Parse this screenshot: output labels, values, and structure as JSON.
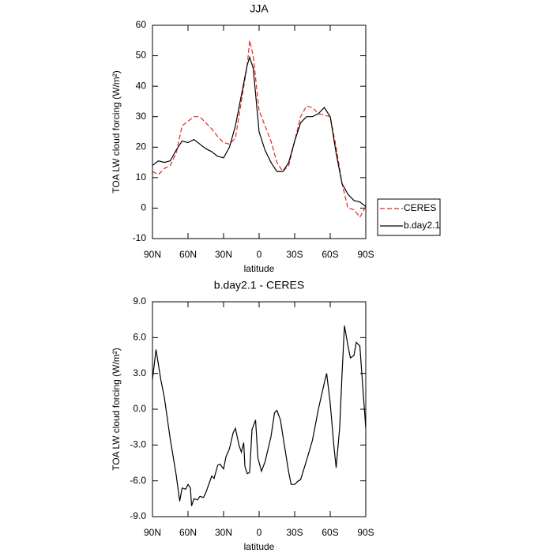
{
  "chart_data": [
    {
      "type": "line",
      "title": "JJA",
      "xlabel": "latitude",
      "ylabel": "TOA LW cloud forcing (W/m²)",
      "x": [
        90,
        85,
        80,
        75,
        70,
        65,
        60,
        55,
        50,
        45,
        40,
        35,
        30,
        25,
        20,
        15,
        10,
        8,
        5,
        0,
        -5,
        -10,
        -15,
        -20,
        -25,
        -30,
        -35,
        -40,
        -45,
        -50,
        -55,
        -60,
        -65,
        -70,
        -75,
        -80,
        -85,
        -90
      ],
      "series": [
        {
          "name": "CERES",
          "color": "#e8241e",
          "line_style": "dashed",
          "values": [
            12,
            11,
            13,
            14,
            18,
            27,
            28.5,
            30,
            30,
            28,
            26,
            23.5,
            21.5,
            21,
            23,
            35,
            47,
            55,
            50,
            32,
            27,
            22,
            15,
            12,
            14,
            22,
            30,
            33.5,
            33,
            31,
            30.5,
            30,
            20,
            8,
            0,
            -0.5,
            -3,
            0.5
          ]
        },
        {
          "name": "b.day2.1",
          "color": "#000000",
          "line_style": "solid",
          "values": [
            14,
            15.5,
            15,
            15.5,
            19,
            22,
            21.5,
            22.5,
            21,
            19.5,
            18.5,
            17,
            16.5,
            20,
            27,
            37,
            47,
            49.5,
            46,
            25,
            19,
            15,
            12,
            12,
            15,
            22,
            28,
            30,
            30,
            31,
            33,
            30,
            18,
            8,
            4.5,
            2.5,
            2,
            0.5
          ]
        }
      ],
      "xlim": [
        90,
        -90
      ],
      "xticks": [
        {
          "value": 90,
          "label": "90N"
        },
        {
          "value": 60,
          "label": "60N"
        },
        {
          "value": 30,
          "label": "30N"
        },
        0,
        {
          "value": -30,
          "label": "30S"
        },
        {
          "value": -60,
          "label": "60S"
        },
        {
          "value": -90,
          "label": "90S"
        }
      ],
      "ylim": [
        -10,
        60
      ],
      "yticks": [
        -10,
        0,
        10,
        20,
        30,
        40,
        50,
        60
      ],
      "legend": "right",
      "grid": false
    },
    {
      "type": "line",
      "title": "b.day2.1 - CERES",
      "xlabel": "latitude",
      "ylabel": "TOA LW cloud forcing (W/m²)",
      "x": [
        90,
        87,
        83,
        80,
        75,
        70,
        67,
        65,
        62,
        60,
        58,
        57,
        55,
        52,
        50,
        47,
        45,
        40,
        38,
        35,
        33,
        30,
        28,
        25,
        22,
        20,
        17,
        15,
        13,
        12,
        10,
        8,
        6,
        3,
        1,
        -2,
        -5,
        -10,
        -13,
        -15,
        -18,
        -20,
        -25,
        -27,
        -30,
        -33,
        -35,
        -40,
        -45,
        -50,
        -55,
        -57,
        -60,
        -63,
        -65,
        -68,
        -70,
        -72,
        -75,
        -77,
        -80,
        -82,
        -85,
        -90
      ],
      "series": [
        {
          "color": "#000000",
          "line_style": "solid",
          "values": [
            2.5,
            5.0,
            2.5,
            1.0,
            -2.5,
            -5.5,
            -7.7,
            -6.6,
            -6.7,
            -6.3,
            -6.6,
            -8.1,
            -7.5,
            -7.6,
            -7.3,
            -7.4,
            -7.0,
            -5.6,
            -5.8,
            -4.7,
            -4.6,
            -5.0,
            -4.0,
            -3.3,
            -2.0,
            -1.6,
            -3.0,
            -3.6,
            -2.8,
            -4.8,
            -5.4,
            -5.3,
            -1.7,
            -0.9,
            -4.1,
            -5.2,
            -4.4,
            -2.3,
            -0.3,
            -0.1,
            -0.9,
            -2.2,
            -5.3,
            -6.3,
            -6.3,
            -6.0,
            -5.9,
            -4.3,
            -2.6,
            0,
            2.2,
            3.0,
            0.5,
            -3.0,
            -4.9,
            -1.5,
            3.0,
            7.0,
            5.3,
            4.3,
            4.5,
            5.6,
            5.3,
            -1.6
          ]
        }
      ],
      "xlim": [
        90,
        -90
      ],
      "xticks": [
        {
          "value": 90,
          "label": "90N"
        },
        {
          "value": 60,
          "label": "60N"
        },
        {
          "value": 30,
          "label": "30N"
        },
        0,
        {
          "value": -30,
          "label": "30S"
        },
        {
          "value": -60,
          "label": "60S"
        },
        {
          "value": -90,
          "label": "90S"
        }
      ],
      "ylim": [
        -9,
        9
      ],
      "yticks": [
        {
          "value": -9,
          "label": "-9.0"
        },
        {
          "value": -6,
          "label": "-6.0"
        },
        {
          "value": -3,
          "label": "-3.0"
        },
        {
          "value": 0,
          "label": "0.0"
        },
        {
          "value": 3,
          "label": "3.0"
        },
        {
          "value": 6,
          "label": "6.0"
        },
        {
          "value": 9,
          "label": "9.0"
        }
      ],
      "grid": false
    }
  ]
}
